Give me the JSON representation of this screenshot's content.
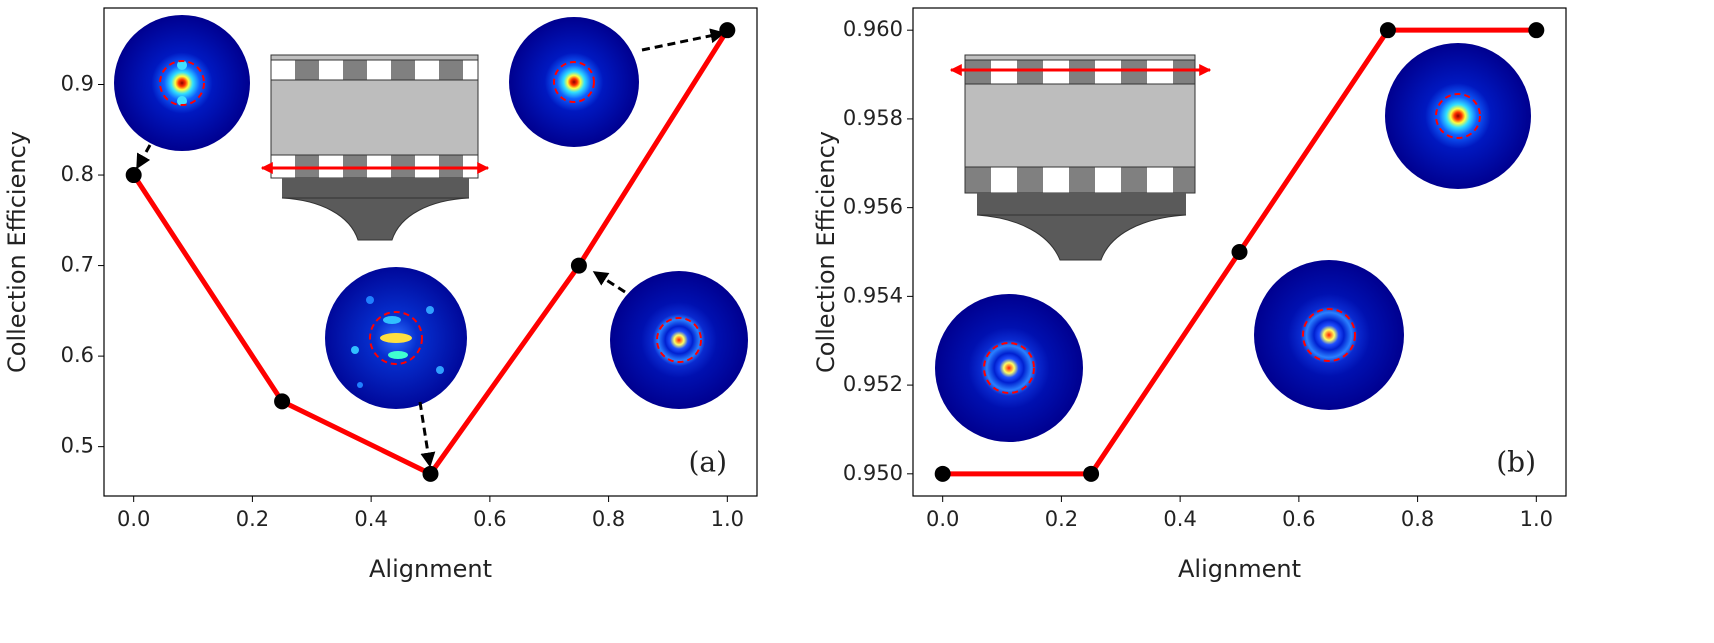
{
  "chart_data": [
    {
      "type": "line",
      "annotation": "(a)",
      "xlabel": "Alignment",
      "ylabel": "Collection Efficiency",
      "x": [
        0,
        0.25,
        0.5,
        0.75,
        1.0
      ],
      "values": [
        0.8,
        0.55,
        0.47,
        0.7,
        0.96
      ],
      "color": "#ff0000",
      "marker_color": "#000000",
      "xlim": [
        -0.05,
        1.05
      ],
      "ylim": [
        0.4455,
        0.9845
      ],
      "xticks": [
        {
          "value": 0,
          "label": "0.0"
        },
        0.2,
        0.4,
        0.6,
        0.8,
        {
          "value": 1,
          "label": "1.0"
        }
      ],
      "yticks": [
        0.5,
        0.6,
        0.7,
        0.8,
        0.9
      ],
      "grid": false
    },
    {
      "type": "line",
      "annotation": "(b)",
      "xlabel": "Alignment",
      "ylabel": "Collection Efficiency",
      "x": [
        0,
        0.25,
        0.5,
        0.75,
        1.0
      ],
      "values": [
        0.95,
        0.95,
        0.955,
        0.96,
        0.96
      ],
      "color": "#ff0000",
      "marker_color": "#000000",
      "xlim": [
        -0.05,
        1.05
      ],
      "ylim": [
        0.9495,
        0.9605
      ],
      "xticks": [
        {
          "value": 0,
          "label": "0.0"
        },
        0.2,
        0.4,
        0.6,
        0.8,
        {
          "value": 1,
          "label": "1.0"
        }
      ],
      "yticks": [
        {
          "value": 0.95,
          "label": "0.950"
        },
        0.952,
        0.954,
        0.956,
        0.958,
        {
          "value": 0.96,
          "label": "0.960"
        }
      ],
      "grid": false
    }
  ]
}
